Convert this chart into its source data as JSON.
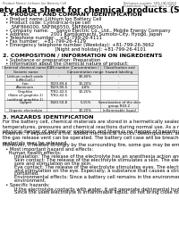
{
  "title": "Safety data sheet for chemical products (SDS)",
  "header_left": "Product Name: Lithium Ion Battery Cell",
  "header_right_1": "Reference number: SDS-LIB-00010",
  "header_right_2": "Established / Revision: Dec.1.2016",
  "section1_title": "1. PRODUCT AND COMPANY IDENTIFICATION",
  "section1_lines": [
    "  • Product name: Lithium Ion Battery Cell",
    "  • Product code: Cylindrical-type cell",
    "      SNF866000, SNF866550, SNF866650A",
    "  • Company name:     Sanyo Electric Co., Ltd., Mobile Energy Company",
    "  • Address:              2001 Kamikamachi, Sumoto-City, Hyogo, Japan",
    "  • Telephone number:   +81-799-26-4111",
    "  • Fax number:   +81-799-26-4129",
    "  • Emergency telephone number (Weekday): +81-799-26-3662",
    "                                    [Night and holiday]: +81-799-26-4101"
  ],
  "section2_title": "2. COMPOSITION / INFORMATION ON INGREDIENTS",
  "section2_intro": "  • Substance or preparation: Preparation",
  "section2_sub": "  • Information about the chemical nature of product:",
  "table_headers": [
    "Chemical chemical name /\nGeneric name",
    "CAS number",
    "Concentration /\nConcentration range",
    "Classification and\nhazard labeling"
  ],
  "table_rows": [
    [
      "Lithium cobalt oxide\n(LiMnCoO₄)",
      "-",
      "30-40%",
      "-"
    ],
    [
      "Iron",
      "7439-89-6",
      "10-20%",
      "-"
    ],
    [
      "Aluminum",
      "7429-90-5",
      "2-8%",
      "-"
    ],
    [
      "Graphite\n(flake of graphite-1)\n(artificial graphite-1)",
      "7782-42-5\n7782-42-5",
      "10-25%",
      "-"
    ],
    [
      "Copper",
      "7440-50-8",
      "5-15%",
      "Sensitization of the skin\ngroup R43.2"
    ],
    [
      "Organic electrolyte",
      "-",
      "10-20%",
      "Inflammable liquid"
    ]
  ],
  "section3_title": "3. HAZARDS IDENTIFICATION",
  "section3_para1": "For the battery cell, chemical materials are stored in a hermetically sealed metal case, designed to withstand\ntemperatures, pressures and chemical reactions during normal use. As a result, during normal use, there is no\nphysical danger of ignition or explosion and there is no danger of hazardous materials leakage.",
  "section3_para2": "However, if exposed to a fire, added mechanical shocks, decomposition, amber alarm without any measures,\nthe gas release vent can be operated. The battery cell case will be breached at fire-pathway. Hazardous\nmaterials may be released.",
  "section3_para3": "Moreover, if heated strongly by the surrounding fire, some gas may be emitted.",
  "section3_sub1": "  • Most important hazard and effects:",
  "section3_human": "    Human health effects:",
  "section3_human_lines": [
    "        Inhalation: The release of the electrolyte has an anesthesia action and stimulates a respiratory tract.",
    "        Skin contact: The release of the electrolyte stimulates a skin. The electrolyte skin contact causes a",
    "        sore and stimulation on the skin.",
    "        Eye contact: The release of the electrolyte stimulates eyes. The electrolyte eye contact causes a sore",
    "        and stimulation on the eye. Especially, a substance that causes a strong inflammation of the eye is",
    "        contained.",
    "        Environmental effects: Since a battery cell remains in the environment, do not throw out it into the",
    "        environment."
  ],
  "section3_sub2": "  • Specific hazards:",
  "section3_specific_lines": [
    "        If the electrolyte contacts with water, it will generate detrimental hydrogen fluoride.",
    "        Since the used electrolyte is inflammable liquid, do not bring close to fire."
  ],
  "bg_color": "#ffffff",
  "text_color": "#000000",
  "table_border_color": "#888888",
  "body_fontsize": 3.8,
  "section_fontsize": 4.5,
  "title_fontsize": 6.5
}
